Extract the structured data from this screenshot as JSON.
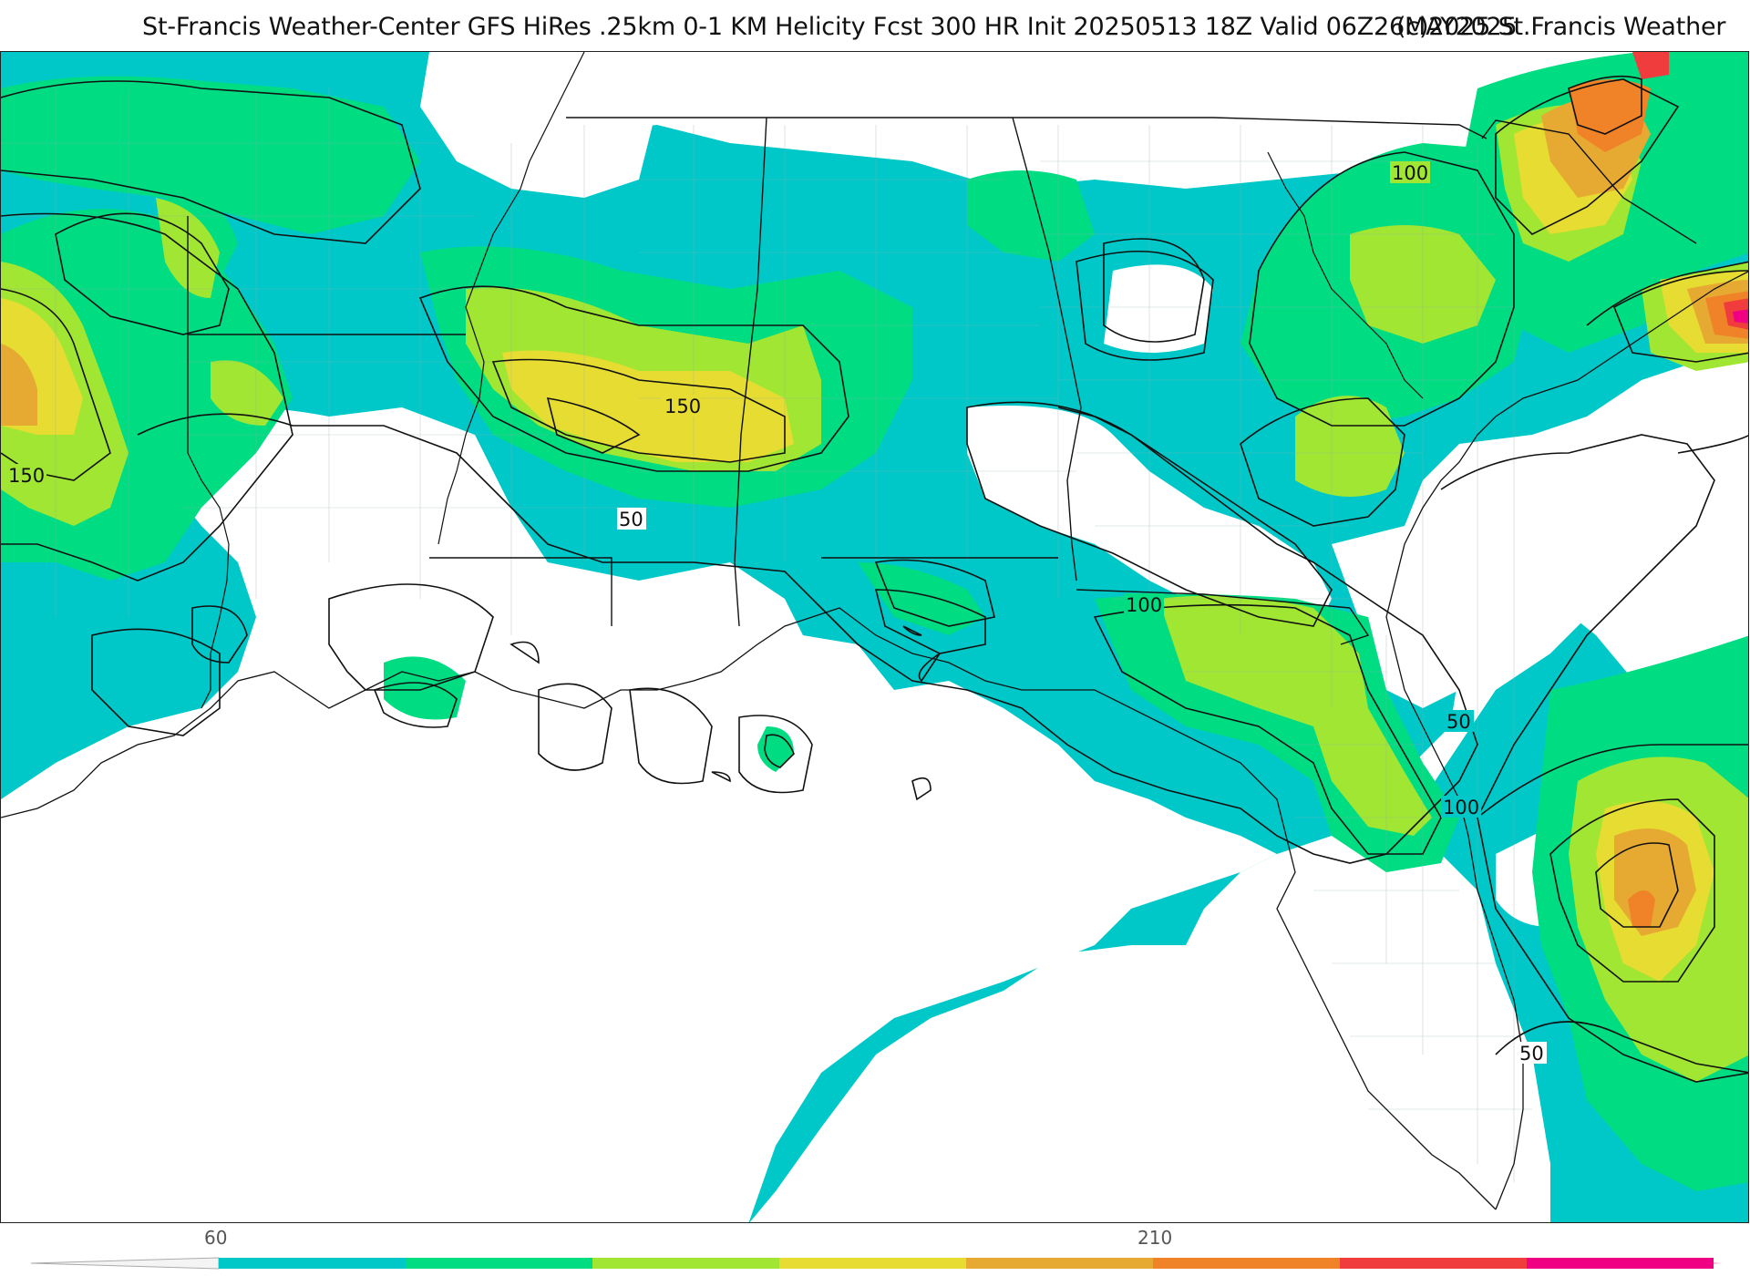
{
  "header": {
    "title": "St-Francis Weather-Center GFS HiRes .25km 0-1 KM Helicity Fcst 300 HR Init 20250513 18Z  Valid 06Z26MAY2025",
    "copyright": "(c)2025 St.Francis Weather"
  },
  "map": {
    "contour_labels": [
      "150",
      "150",
      "50",
      "100",
      "100",
      "100",
      "50",
      "100",
      "50"
    ]
  },
  "colorbar": {
    "tick_labels": [
      "60",
      "210"
    ],
    "colors": [
      "#00c8c8",
      "#00dc82",
      "#a0e632",
      "#e6dc32",
      "#e6aa32",
      "#f08228",
      "#f03c3c",
      "#f00082"
    ]
  }
}
